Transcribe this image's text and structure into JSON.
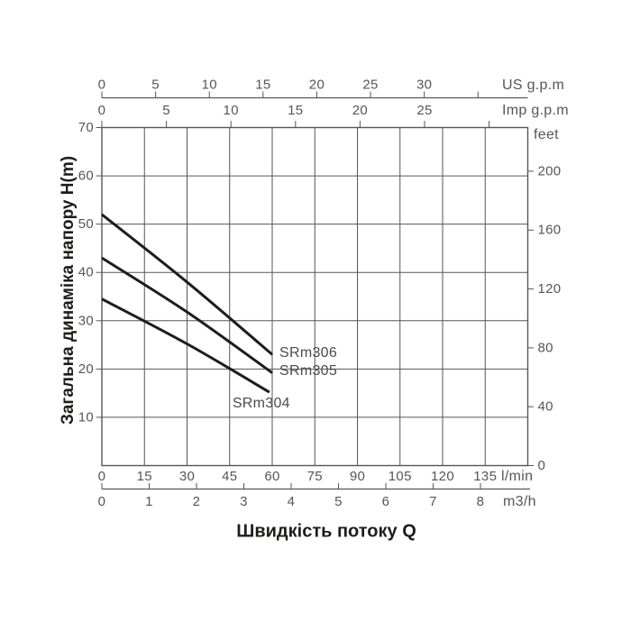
{
  "chart_data": {
    "type": "line",
    "title": "",
    "xlabel": "Швидкість потоку Q",
    "ylabel": "Загальна динаміка напору H(m)",
    "x_unit": "l/min",
    "y_unit": "m",
    "xlim": [
      0,
      150
    ],
    "ylim": [
      0,
      70
    ],
    "grid": {
      "on": true,
      "x_step_lmin": 15,
      "y_step_m": 10
    },
    "axes": {
      "us_gpm": {
        "label": "US g.p.m",
        "ticks": [
          0,
          5,
          10,
          15,
          20,
          25,
          30
        ],
        "extra_ticks": [
          35
        ],
        "lmin_per_unit": 3.785
      },
      "imp_gpm": {
        "label": "Imp g.p.m",
        "ticks": [
          0,
          5,
          10,
          15,
          20,
          25
        ],
        "extra_ticks": [
          30
        ],
        "lmin_per_unit": 4.546
      },
      "lmin": {
        "label": "l/min",
        "ticks": [
          0,
          15,
          30,
          45,
          60,
          75,
          90,
          105,
          120,
          135
        ]
      },
      "m3h": {
        "label": "m3/h",
        "ticks": [
          0,
          1,
          2,
          3,
          4,
          5,
          6,
          7,
          8
        ],
        "lmin_per_unit": 16.6667
      },
      "meters": {
        "ticks": [
          10,
          20,
          30,
          40,
          50,
          60,
          70
        ]
      },
      "feet": {
        "label": "feet",
        "ticks": [
          0,
          40,
          80,
          120,
          160,
          200
        ],
        "m_per_unit": 0.3048
      }
    },
    "series": [
      {
        "name": "SRm306",
        "points_lmin_m": [
          [
            0,
            52.0
          ],
          [
            30,
            38.0
          ],
          [
            60,
            23.0
          ]
        ],
        "label_side": "right"
      },
      {
        "name": "SRm305",
        "points_lmin_m": [
          [
            0,
            43.0
          ],
          [
            30,
            31.8
          ],
          [
            60,
            19.2
          ]
        ],
        "label_side": "right"
      },
      {
        "name": "SRm304",
        "points_lmin_m": [
          [
            0,
            34.5
          ],
          [
            30,
            25.2
          ],
          [
            59,
            15.2
          ]
        ],
        "label_side": "below"
      }
    ],
    "colors": {
      "background": "#ffffff",
      "grid": "#55565a",
      "curve": "#1d1d1b",
      "tick_text": "#55565a",
      "series_label_text": "#4a4b4e",
      "title_text": "#1d1d1b"
    },
    "legend": {
      "position": "none"
    }
  }
}
